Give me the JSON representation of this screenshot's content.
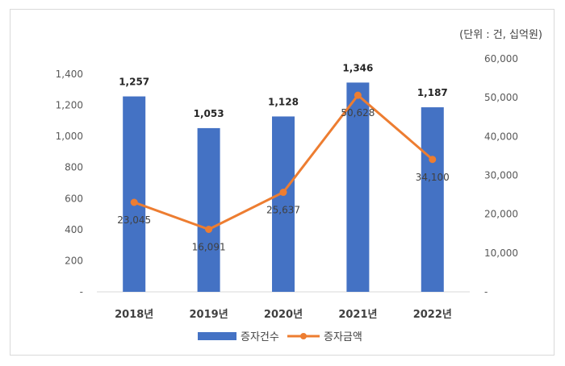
{
  "chart_data": {
    "type": "bar",
    "unit_note": "(단위 : 건, 십억원)",
    "categories": [
      "2018년",
      "2019년",
      "2020년",
      "2021년",
      "2022년"
    ],
    "series": [
      {
        "name": "증자건수",
        "type": "bar",
        "axis": "left",
        "color": "#4472c4",
        "values": [
          1257,
          1053,
          1128,
          1346,
          1187
        ],
        "labels": [
          "1,257",
          "1,053",
          "1,128",
          "1,346",
          "1,187"
        ]
      },
      {
        "name": "증자금액",
        "type": "line",
        "axis": "right",
        "color": "#ed7d31",
        "values": [
          23045,
          16091,
          25637,
          50628,
          34100
        ],
        "labels": [
          "23,045",
          "16,091",
          "25,637",
          "50,628",
          "34,100"
        ]
      }
    ],
    "y_left": {
      "ylim": [
        0,
        1400
      ],
      "ticks": [
        0,
        200,
        400,
        600,
        800,
        1000,
        1200,
        1400
      ],
      "tick_labels": [
        "-",
        "200",
        "400",
        "600",
        "800",
        "1,000",
        "1,200",
        "1,400"
      ]
    },
    "y_right": {
      "ylim": [
        0,
        60000
      ],
      "ticks": [
        0,
        10000,
        20000,
        30000,
        40000,
        50000,
        60000
      ],
      "tick_labels": [
        "-",
        "10,000",
        "20,000",
        "30,000",
        "40,000",
        "50,000",
        "60,000"
      ]
    },
    "legend_position": "bottom",
    "grid": false
  }
}
